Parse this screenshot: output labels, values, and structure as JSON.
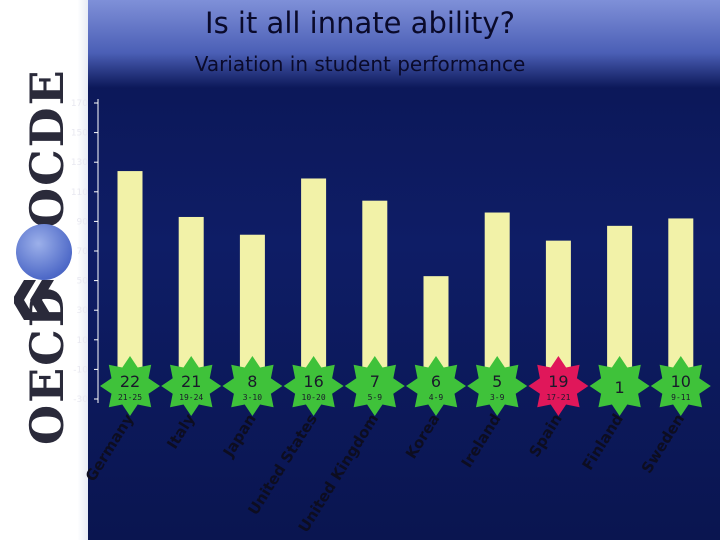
{
  "slide": {
    "title": "Is it all innate ability?",
    "subtitle": "Variation in student performance",
    "logo_text_top": "OCDE",
    "logo_text_bottom": "OECD"
  },
  "chart_data": {
    "type": "bar",
    "title": "Is it all innate ability?",
    "subtitle": "Variation in student performance",
    "categories": [
      "Germany",
      "Italy",
      "Japan",
      "United States",
      "United Kingdom",
      "Korea",
      "Ireland",
      "Spain",
      "Finland",
      "Sweden"
    ],
    "values": [
      124,
      93,
      81,
      119,
      104,
      53,
      96,
      77,
      87,
      92
    ],
    "ranks": [
      "22",
      "21",
      "8",
      "16",
      "7",
      "6",
      "5",
      "19",
      "1",
      "10"
    ],
    "rank_ranges": [
      "21-25",
      "19-24",
      "3-10",
      "10-20",
      "5-9",
      "4-9",
      "3-9",
      "17-21",
      "",
      "9-11"
    ],
    "yticks": [
      170,
      150,
      130,
      110,
      90,
      70,
      50,
      30,
      10,
      -10,
      -30
    ],
    "ylim": [
      -30,
      170
    ],
    "grid": false,
    "colors": {
      "bar": "#f2f2a8",
      "star_default": "#3fc23a",
      "star_highlight": "#e0175a",
      "axis": "#ffffff"
    },
    "highlighted": [
      "Spain"
    ]
  }
}
